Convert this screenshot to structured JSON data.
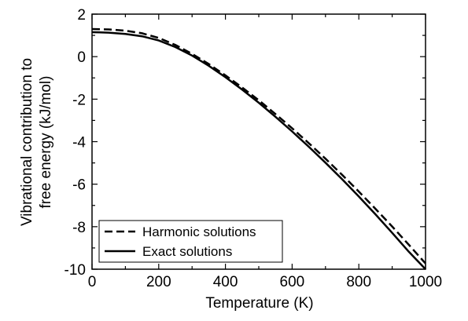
{
  "chart_data": {
    "type": "line",
    "xlabel": "Temperature (K)",
    "ylabel_line1": "Vibrational contribution to",
    "ylabel_line2": "free energy (kJ/mol)",
    "xlim": [
      0,
      1000
    ],
    "ylim": [
      -10,
      2
    ],
    "xticks": [
      "0",
      "200",
      "400",
      "600",
      "800",
      "1000"
    ],
    "yticks": [
      "2",
      "0",
      "-2",
      "-4",
      "-6",
      "-8",
      "-10"
    ],
    "grid": false,
    "legend_position": "bottom-left",
    "series": [
      {
        "name": "Harmonic solutions",
        "style": "dashed",
        "color": "#000000",
        "x": [
          0,
          50,
          100,
          150,
          200,
          250,
          300,
          350,
          400,
          450,
          500,
          550,
          600,
          650,
          700,
          750,
          800,
          850,
          900,
          950,
          1000
        ],
        "y": [
          1.3,
          1.28,
          1.22,
          1.1,
          0.88,
          0.55,
          0.13,
          -0.35,
          -0.88,
          -1.45,
          -2.05,
          -2.7,
          -3.37,
          -4.07,
          -4.8,
          -5.56,
          -6.35,
          -7.16,
          -7.99,
          -8.85,
          -9.73
        ]
      },
      {
        "name": "Exact solutions",
        "style": "solid",
        "color": "#000000",
        "x": [
          0,
          50,
          100,
          150,
          200,
          250,
          300,
          350,
          400,
          450,
          500,
          550,
          600,
          650,
          700,
          750,
          800,
          850,
          900,
          950,
          1000
        ],
        "y": [
          1.15,
          1.13,
          1.07,
          0.96,
          0.76,
          0.45,
          0.05,
          -0.43,
          -0.97,
          -1.55,
          -2.17,
          -2.83,
          -3.52,
          -4.24,
          -4.99,
          -5.77,
          -6.58,
          -7.42,
          -8.29,
          -9.18,
          -10.0
        ]
      }
    ]
  }
}
